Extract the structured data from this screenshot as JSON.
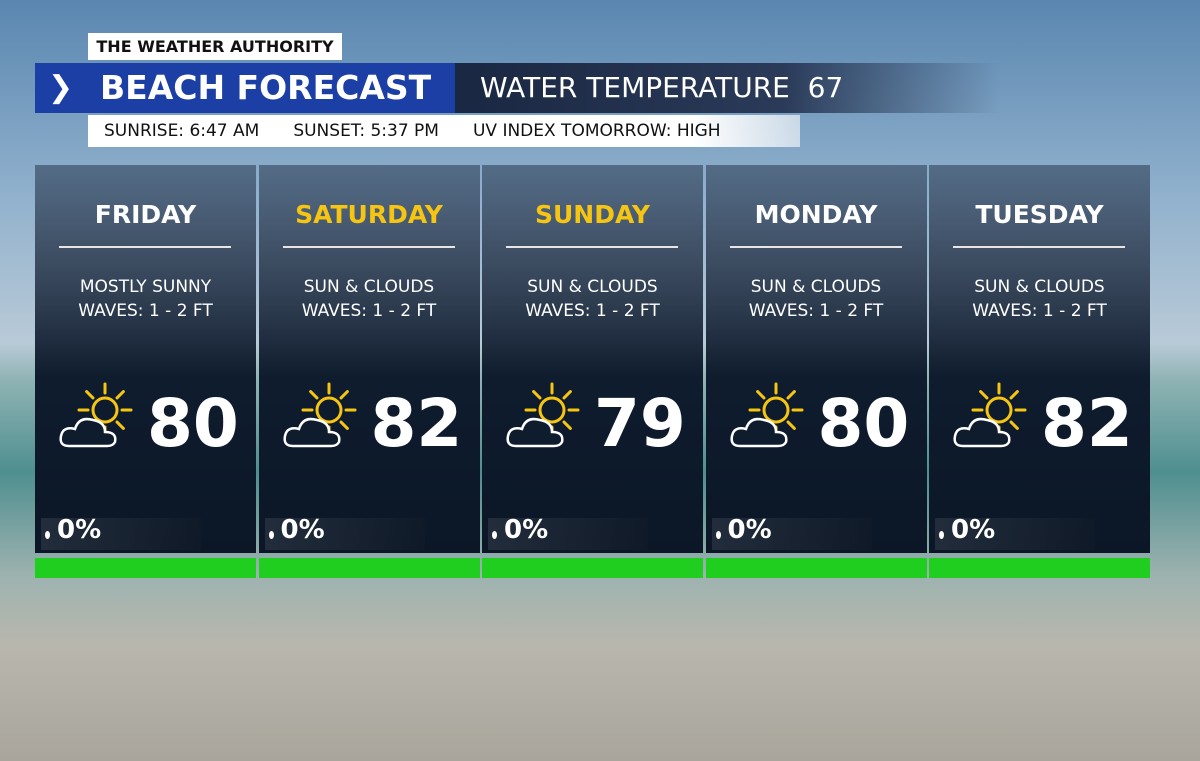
{
  "header": {
    "brand": "THE WEATHER AUTHORITY",
    "title": "BEACH FORECAST",
    "water_label": "WATER TEMPERATURE",
    "water_temp": 67,
    "sunrise": "SUNRISE: 6:47 AM",
    "sunset": "SUNSET: 5:37 PM",
    "uv": "UV INDEX TOMORROW: HIGH"
  },
  "days": [
    {
      "name": "FRIDAY",
      "name_color": "#ffffff",
      "condition": "MOSTLY SUNNY",
      "waves": "WAVES: 1 - 2 FT",
      "temp": 80,
      "precip": "0%"
    },
    {
      "name": "SATURDAY",
      "name_color": "#f6c512",
      "condition": "SUN & CLOUDS",
      "waves": "WAVES: 1 - 2 FT",
      "temp": 82,
      "precip": "0%"
    },
    {
      "name": "SUNDAY",
      "name_color": "#f6c512",
      "condition": "SUN & CLOUDS",
      "waves": "WAVES: 1 - 2 FT",
      "temp": 79,
      "precip": "0%"
    },
    {
      "name": "MONDAY",
      "name_color": "#ffffff",
      "condition": "SUN & CLOUDS",
      "waves": "WAVES: 1 - 2 FT",
      "temp": 80,
      "precip": "0%"
    },
    {
      "name": "TUESDAY",
      "name_color": "#ffffff",
      "condition": "SUN & CLOUDS",
      "waves": "WAVES: 1 - 2 FT",
      "temp": 82,
      "precip": "0%"
    }
  ]
}
